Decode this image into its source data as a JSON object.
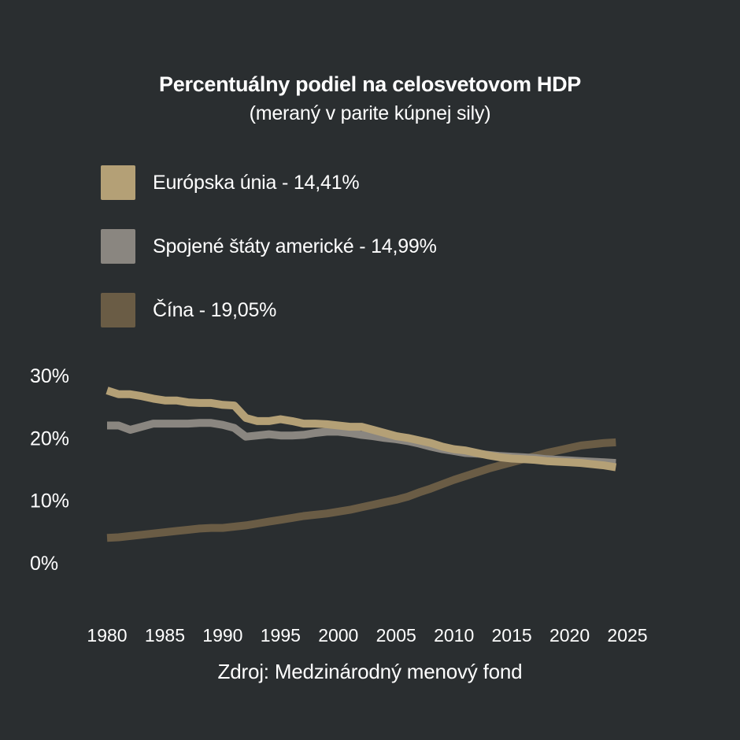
{
  "header": {
    "title": "Percentuálny podiel na celosvetovom HDP",
    "subtitle": "(meraný v parite kúpnej sily)"
  },
  "source": "Zdroj: Medzinárodný menový fond",
  "chart_data": {
    "type": "line",
    "title": "Percentuálny podiel na celosvetovom HDP",
    "subtitle": "(meraný v parite kúpnej sily)",
    "xlabel": "",
    "ylabel": "",
    "xlim": [
      1980,
      2025
    ],
    "ylim": [
      0,
      30
    ],
    "grid": false,
    "legend_position": "top-left",
    "x_ticks": [
      "1980",
      "1985",
      "1990",
      "1995",
      "2000",
      "2005",
      "2010",
      "2015",
      "2020",
      "2025"
    ],
    "y_ticks": [
      {
        "value": 0,
        "label": "0%"
      },
      {
        "value": 10,
        "label": "10%"
      },
      {
        "value": 20,
        "label": "20%"
      },
      {
        "value": 30,
        "label": "30%"
      }
    ],
    "series": [
      {
        "name": "Európska únia - 14,41%",
        "color": "#b4a076",
        "points": [
          [
            1980,
            27.6
          ],
          [
            1981,
            27.0
          ],
          [
            1982,
            27.0
          ],
          [
            1983,
            26.7
          ],
          [
            1984,
            26.3
          ],
          [
            1985,
            26.0
          ],
          [
            1986,
            26.0
          ],
          [
            1987,
            25.7
          ],
          [
            1988,
            25.6
          ],
          [
            1989,
            25.6
          ],
          [
            1990,
            25.3
          ],
          [
            1991,
            25.2
          ],
          [
            1992,
            23.2
          ],
          [
            1993,
            22.7
          ],
          [
            1994,
            22.7
          ],
          [
            1995,
            23.0
          ],
          [
            1996,
            22.7
          ],
          [
            1997,
            22.3
          ],
          [
            1998,
            22.3
          ],
          [
            1999,
            22.2
          ],
          [
            2000,
            22.0
          ],
          [
            2001,
            21.8
          ],
          [
            2002,
            21.8
          ],
          [
            2003,
            21.3
          ],
          [
            2004,
            20.8
          ],
          [
            2005,
            20.3
          ],
          [
            2006,
            20.0
          ],
          [
            2007,
            19.6
          ],
          [
            2008,
            19.2
          ],
          [
            2009,
            18.6
          ],
          [
            2010,
            18.2
          ],
          [
            2011,
            18.0
          ],
          [
            2012,
            17.6
          ],
          [
            2013,
            17.2
          ],
          [
            2014,
            16.9
          ],
          [
            2015,
            16.7
          ],
          [
            2016,
            16.6
          ],
          [
            2017,
            16.5
          ],
          [
            2018,
            16.3
          ],
          [
            2019,
            16.2
          ],
          [
            2020,
            16.1
          ],
          [
            2021,
            16.0
          ],
          [
            2022,
            15.8
          ],
          [
            2023,
            15.6
          ],
          [
            2024,
            15.3
          ]
        ]
      },
      {
        "name": "Spojené štáty americké - 14,99%",
        "color": "#8a8680",
        "points": [
          [
            1980,
            22.0
          ],
          [
            1981,
            22.0
          ],
          [
            1982,
            21.3
          ],
          [
            1983,
            21.8
          ],
          [
            1984,
            22.3
          ],
          [
            1985,
            22.3
          ],
          [
            1986,
            22.3
          ],
          [
            1987,
            22.3
          ],
          [
            1988,
            22.4
          ],
          [
            1989,
            22.4
          ],
          [
            1990,
            22.1
          ],
          [
            1991,
            21.6
          ],
          [
            1992,
            20.2
          ],
          [
            1993,
            20.4
          ],
          [
            1994,
            20.6
          ],
          [
            1995,
            20.4
          ],
          [
            1996,
            20.4
          ],
          [
            1997,
            20.5
          ],
          [
            1998,
            20.8
          ],
          [
            1999,
            21.0
          ],
          [
            2000,
            21.0
          ],
          [
            2001,
            20.8
          ],
          [
            2002,
            20.5
          ],
          [
            2003,
            20.3
          ],
          [
            2004,
            20.0
          ],
          [
            2005,
            19.8
          ],
          [
            2006,
            19.5
          ],
          [
            2007,
            19.1
          ],
          [
            2008,
            18.6
          ],
          [
            2009,
            18.2
          ],
          [
            2010,
            17.9
          ],
          [
            2011,
            17.6
          ],
          [
            2012,
            17.5
          ],
          [
            2013,
            17.3
          ],
          [
            2014,
            17.1
          ],
          [
            2015,
            17.0
          ],
          [
            2016,
            16.9
          ],
          [
            2017,
            16.8
          ],
          [
            2018,
            16.6
          ],
          [
            2019,
            16.5
          ],
          [
            2020,
            16.4
          ],
          [
            2021,
            16.3
          ],
          [
            2022,
            16.2
          ],
          [
            2023,
            16.1
          ],
          [
            2024,
            16.0
          ]
        ]
      },
      {
        "name": "Čína - 19,05%",
        "color": "#6a5c45",
        "points": [
          [
            1980,
            4.0
          ],
          [
            1981,
            4.1
          ],
          [
            1982,
            4.3
          ],
          [
            1983,
            4.5
          ],
          [
            1984,
            4.7
          ],
          [
            1985,
            4.9
          ],
          [
            1986,
            5.1
          ],
          [
            1987,
            5.3
          ],
          [
            1988,
            5.5
          ],
          [
            1989,
            5.6
          ],
          [
            1990,
            5.6
          ],
          [
            1991,
            5.8
          ],
          [
            1992,
            6.0
          ],
          [
            1993,
            6.3
          ],
          [
            1994,
            6.6
          ],
          [
            1995,
            6.9
          ],
          [
            1996,
            7.2
          ],
          [
            1997,
            7.5
          ],
          [
            1998,
            7.7
          ],
          [
            1999,
            7.9
          ],
          [
            2000,
            8.2
          ],
          [
            2001,
            8.5
          ],
          [
            2002,
            8.9
          ],
          [
            2003,
            9.3
          ],
          [
            2004,
            9.7
          ],
          [
            2005,
            10.1
          ],
          [
            2006,
            10.6
          ],
          [
            2007,
            11.3
          ],
          [
            2008,
            11.9
          ],
          [
            2009,
            12.6
          ],
          [
            2010,
            13.3
          ],
          [
            2011,
            13.9
          ],
          [
            2012,
            14.5
          ],
          [
            2013,
            15.1
          ],
          [
            2014,
            15.6
          ],
          [
            2015,
            16.1
          ],
          [
            2016,
            16.6
          ],
          [
            2017,
            17.1
          ],
          [
            2018,
            17.6
          ],
          [
            2019,
            18.0
          ],
          [
            2020,
            18.4
          ],
          [
            2021,
            18.8
          ],
          [
            2022,
            19.0
          ],
          [
            2023,
            19.2
          ],
          [
            2024,
            19.3
          ]
        ]
      }
    ]
  }
}
